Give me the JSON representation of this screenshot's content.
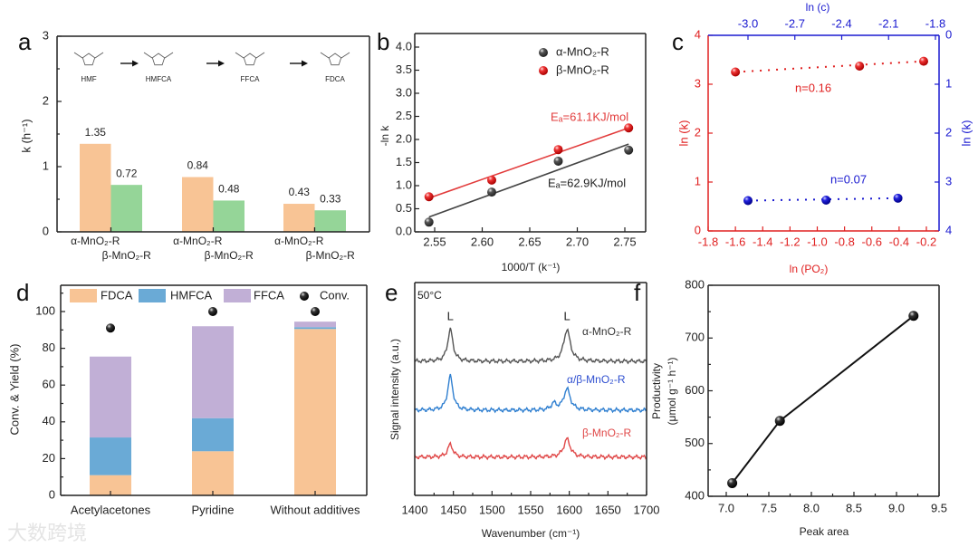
{
  "panel_letters": [
    "a",
    "b",
    "c",
    "d",
    "e",
    "f"
  ],
  "watermark": "大数跨境",
  "chart_data": [
    {
      "type": "bar",
      "ylabel": "k (h⁻¹)",
      "ylim": [
        0,
        3
      ],
      "yticks": [
        "0",
        "1",
        "2",
        "3"
      ],
      "scheme": {
        "molecules": [
          "HMF",
          "HMFCA",
          "FFCA",
          "FDCA"
        ]
      },
      "xtick_labels": [
        "α-MnO₂-R",
        "β-MnO₂-R",
        "α-MnO₂-R",
        "β-MnO₂-R",
        "α-MnO₂-R",
        "β-MnO₂-R"
      ],
      "series": [
        {
          "name": "α-MnO₂-R",
          "values": [
            1.35,
            0.84,
            0.43
          ],
          "value_labels": [
            "1.35",
            "0.84",
            "0.43"
          ],
          "color": "#f8c495"
        },
        {
          "name": "β-MnO₂-R",
          "values": [
            0.72,
            0.48,
            0.33
          ],
          "value_labels": [
            "0.72",
            "0.48",
            "0.33"
          ],
          "color": "#95d598"
        }
      ]
    },
    {
      "type": "scatter",
      "xlabel": "1000/T (k⁻¹)",
      "ylabel": "-ln k",
      "xlim": [
        2.529,
        2.772
      ],
      "ylim": [
        0,
        4.3
      ],
      "xticks": [
        "2.55",
        "2.60",
        "2.65",
        "2.70",
        "2.75"
      ],
      "yticks": [
        "0.0",
        "0.5",
        "1.0",
        "1.5",
        "2.0",
        "2.5",
        "3.0",
        "3.5",
        "4.0"
      ],
      "legend": "top-right",
      "series": [
        {
          "name": "α-MnO₂-R",
          "color": "#444444",
          "x": [
            2.544,
            2.61,
            2.68,
            2.754
          ],
          "y": [
            0.21,
            0.86,
            1.53,
            1.77
          ],
          "fit": [
            [
              2.544,
              0.32
            ],
            [
              2.754,
              1.9
            ]
          ],
          "annotation": "Eₐ=62.9KJ/mol"
        },
        {
          "name": "β-MnO₂-R",
          "color": "#e23b3b",
          "x": [
            2.544,
            2.61,
            2.68,
            2.754
          ],
          "y": [
            0.76,
            1.12,
            1.78,
            2.25
          ],
          "fit": [
            [
              2.544,
              0.73
            ],
            [
              2.754,
              2.25
            ]
          ],
          "annotation": "Eₐ=61.1KJ/mol"
        }
      ]
    },
    {
      "type": "scatter",
      "xlabel": "ln (PO₂)",
      "ylabel": "ln (k)",
      "x2label": "ln (c)",
      "y2label": "ln (k)",
      "xlim": [
        -1.8,
        -0.107
      ],
      "ylim": [
        0,
        4
      ],
      "x2lim": [
        -3.255,
        -1.777
      ],
      "y2lim": [
        4,
        0
      ],
      "xticks": [
        "-1.8",
        "-1.6",
        "-1.4",
        "-1.2",
        "-1.0",
        "-0.8",
        "-0.6",
        "-0.4",
        "-0.2"
      ],
      "yticks": [
        "0",
        "1",
        "2",
        "3",
        "4"
      ],
      "x2ticks": [
        "-3.0",
        "-2.7",
        "-2.4",
        "-2.1",
        "-1.8"
      ],
      "y2ticks": [
        "0",
        "1",
        "2",
        "3",
        "4"
      ],
      "series": [
        {
          "name": "ln(PO2)",
          "axis": "bottom-left",
          "color": "#e02020",
          "x": [
            -1.6,
            -0.69,
            -0.22
          ],
          "y": [
            3.25,
            3.37,
            3.47
          ],
          "annotation": "n=0.16"
        },
        {
          "name": "ln(c)",
          "axis": "top-right",
          "color": "#1a1ad0",
          "x": [
            -3.0,
            -2.5,
            -2.04
          ],
          "y": [
            3.38,
            3.37,
            3.33
          ],
          "annotation": "n=0.07"
        }
      ]
    },
    {
      "type": "bar",
      "stacked": true,
      "ylabel": "Conv. & Yield (%)",
      "ylim": [
        0,
        116
      ],
      "yticks": [
        "0",
        "20",
        "40",
        "60",
        "80",
        "100"
      ],
      "categories": [
        "Acetylacetones",
        "Pyridine",
        "Without additives"
      ],
      "legend": "top",
      "series": [
        {
          "name": "FDCA",
          "values": [
            11,
            24,
            90.5
          ],
          "color": "#f8c495"
        },
        {
          "name": "HMFCA",
          "values": [
            20.5,
            18,
            1
          ],
          "color": "#6aaad6"
        },
        {
          "name": "FFCA",
          "values": [
            44,
            50,
            3
          ],
          "color": "#c1afd6"
        }
      ],
      "conversion": {
        "name": "Conv.",
        "values": [
          91,
          100,
          100
        ],
        "color": "#111111"
      }
    },
    {
      "type": "line",
      "xlabel": "Wavenumber (cm⁻¹)",
      "ylabel": "Signal intensity (a.u.)",
      "xlim": [
        1400,
        1700
      ],
      "ylim": [
        0,
        100
      ],
      "xticks": [
        "1400",
        "1450",
        "1500",
        "1550",
        "1600",
        "1650",
        "1700"
      ],
      "annotation": "50°C",
      "peak_label": "L",
      "peak_positions": [
        1446,
        1597
      ],
      "series": [
        {
          "name": "α-MnO₂-R",
          "color": "#555555",
          "baseline": 63,
          "peaks": [
            [
              1446,
              15,
              4
            ],
            [
              1597,
              15,
              5
            ]
          ]
        },
        {
          "name": "α/β-MnO₂-R",
          "color": "#2f7fd0",
          "baseline": 40,
          "peaks": [
            [
              1446,
              16,
              4
            ],
            [
              1580,
              3,
              4
            ],
            [
              1597,
              10,
              5
            ]
          ]
        },
        {
          "name": "β-MnO₂-R",
          "color": "#e04848",
          "baseline": 18,
          "peaks": [
            [
              1446,
              6,
              4
            ],
            [
              1597,
              8.5,
              5
            ]
          ]
        }
      ]
    },
    {
      "type": "line",
      "xlabel": "Peak area",
      "ylabel": "Productivity",
      "ylabel2": "(μmol g⁻¹ h⁻¹)",
      "xlim": [
        6.75,
        9.5
      ],
      "ylim": [
        400,
        800
      ],
      "xticks": [
        "7.0",
        "7.5",
        "8.0",
        "8.5",
        "9.0",
        "9.5"
      ],
      "yticks": [
        "400",
        "500",
        "600",
        "700",
        "800"
      ],
      "series": [
        {
          "name": "Productivity",
          "color": "#111111",
          "x": [
            7.07,
            7.63,
            9.2
          ],
          "y": [
            425,
            543,
            742
          ]
        }
      ]
    }
  ]
}
